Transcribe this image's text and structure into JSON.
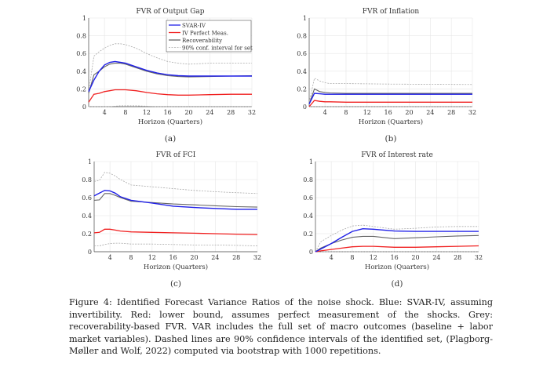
{
  "colors": {
    "svar": "#2020e8",
    "iv": "#f02020",
    "recov": "#666666",
    "ci": "#aaaaaa",
    "grid": "#e6e6e6"
  },
  "legend": [
    "SVAR-IV",
    "IV Perfect Meas.",
    "Recoverability",
    "90% conf. interval for set"
  ],
  "caption": "Figure 4: Identified Forecast Variance Ratios of the noise shock. Blue: SVAR-IV, assuming invertibility. Red: lower bound, assumes perfect measurement of the shocks. Grey: recoverability-based FVR. VAR includes the full set of macro outcomes (baseline + labor market variables). Dashed lines are 90% confidence intervals of the identified set, (Plagborg-Møller and Wolf, 2022) computed via bootstrap with 1000 repetitions.",
  "chart_data": [
    {
      "type": "line",
      "title": "FVR of Output Gap",
      "sublabel": "(a)",
      "xlabel": "Horizon (Quarters)",
      "ylabel": "",
      "xlim": [
        1,
        32
      ],
      "ylim": [
        0,
        1
      ],
      "xticks": [
        4,
        8,
        12,
        16,
        20,
        24,
        28,
        32
      ],
      "yticks": [
        0,
        0.2,
        0.4,
        0.6,
        0.8,
        1
      ],
      "ytick_labels": [
        "0",
        "0.2",
        "0.4",
        "0.6",
        "0.8",
        "1"
      ],
      "grid": true,
      "legend": "top-right",
      "x": [
        1,
        2,
        3,
        4,
        5,
        6,
        7,
        8,
        10,
        12,
        14,
        16,
        18,
        20,
        24,
        28,
        32
      ],
      "series": [
        {
          "name": "90% conf. interval for set",
          "role": "ci",
          "values": [
            0.17,
            0.57,
            0.62,
            0.66,
            0.69,
            0.71,
            0.71,
            0.7,
            0.66,
            0.6,
            0.55,
            0.51,
            0.49,
            0.48,
            0.49,
            0.49,
            0.49
          ]
        },
        {
          "name": "90% conf. interval for set (lower)",
          "role": "ci",
          "values": [
            0,
            0,
            0,
            0,
            0,
            0.005,
            0.01,
            0.01,
            0.01,
            0.005,
            0,
            0,
            0,
            0,
            0,
            0,
            0
          ]
        },
        {
          "name": "Recoverability",
          "role": "recov",
          "values": [
            0.15,
            0.36,
            0.4,
            0.45,
            0.48,
            0.49,
            0.49,
            0.48,
            0.44,
            0.4,
            0.37,
            0.35,
            0.34,
            0.335,
            0.34,
            0.345,
            0.35
          ]
        },
        {
          "name": "IV Perfect Meas.",
          "role": "iv",
          "values": [
            0.05,
            0.14,
            0.15,
            0.17,
            0.18,
            0.19,
            0.19,
            0.19,
            0.18,
            0.16,
            0.145,
            0.135,
            0.13,
            0.13,
            0.135,
            0.14,
            0.14
          ]
        },
        {
          "name": "SVAR-IV",
          "role": "svar",
          "values": [
            0.17,
            0.3,
            0.4,
            0.47,
            0.5,
            0.51,
            0.5,
            0.49,
            0.45,
            0.41,
            0.38,
            0.36,
            0.35,
            0.345,
            0.345,
            0.345,
            0.345
          ]
        }
      ]
    },
    {
      "type": "line",
      "title": "FVR of Inflation",
      "sublabel": "(b)",
      "xlabel": "Horizon (Quarters)",
      "ylabel": "",
      "xlim": [
        1,
        32
      ],
      "ylim": [
        0,
        1
      ],
      "xticks": [
        4,
        8,
        12,
        16,
        20,
        24,
        28,
        32
      ],
      "yticks": [
        0,
        0.2,
        0.4,
        0.6,
        0.8,
        1
      ],
      "ytick_labels": [
        "0",
        "0.2",
        "0.4",
        "0.6",
        "0.8",
        "1"
      ],
      "grid": true,
      "x": [
        1,
        2,
        3,
        4,
        5,
        8,
        16,
        32
      ],
      "series": [
        {
          "name": "90% conf. interval for set",
          "role": "ci",
          "values": [
            0.05,
            0.32,
            0.29,
            0.27,
            0.26,
            0.26,
            0.255,
            0.25
          ]
        },
        {
          "name": "90% conf. interval for set (lower)",
          "role": "ci",
          "values": [
            0,
            0,
            0,
            0,
            0,
            0,
            0,
            0
          ]
        },
        {
          "name": "Recoverability",
          "role": "recov",
          "values": [
            0.03,
            0.2,
            0.17,
            0.16,
            0.155,
            0.15,
            0.15,
            0.15
          ]
        },
        {
          "name": "IV Perfect Meas.",
          "role": "iv",
          "values": [
            0,
            0.07,
            0.06,
            0.055,
            0.055,
            0.05,
            0.05,
            0.05
          ]
        },
        {
          "name": "SVAR-IV",
          "role": "svar",
          "values": [
            0.03,
            0.15,
            0.145,
            0.14,
            0.14,
            0.14,
            0.14,
            0.14
          ]
        }
      ]
    },
    {
      "type": "line",
      "title": "FVR of FCI",
      "sublabel": "(c)",
      "xlabel": "Horizon (Quarters)",
      "ylabel": "",
      "xlim": [
        1,
        32
      ],
      "ylim": [
        0,
        1
      ],
      "xticks": [
        4,
        8,
        12,
        16,
        20,
        24,
        28,
        32
      ],
      "yticks": [
        0,
        0.2,
        0.4,
        0.6,
        0.8,
        1
      ],
      "ytick_labels": [
        "0",
        "0.2",
        "0.4",
        "0.6",
        "0.8",
        "1"
      ],
      "grid": true,
      "x": [
        1,
        2,
        3,
        4,
        5,
        6,
        8,
        12,
        16,
        20,
        24,
        28,
        32
      ],
      "series": [
        {
          "name": "90% conf. interval for set",
          "role": "ci",
          "values": [
            0.78,
            0.79,
            0.88,
            0.87,
            0.84,
            0.8,
            0.74,
            0.72,
            0.7,
            0.68,
            0.665,
            0.655,
            0.645
          ]
        },
        {
          "name": "90% conf. interval for set (lower)",
          "role": "ci",
          "values": [
            0.065,
            0.065,
            0.08,
            0.09,
            0.095,
            0.095,
            0.085,
            0.085,
            0.08,
            0.075,
            0.075,
            0.07,
            0.065
          ]
        },
        {
          "name": "Recoverability",
          "role": "recov",
          "values": [
            0.57,
            0.575,
            0.645,
            0.645,
            0.625,
            0.6,
            0.56,
            0.545,
            0.53,
            0.52,
            0.51,
            0.5,
            0.495
          ]
        },
        {
          "name": "IV Perfect Meas.",
          "role": "iv",
          "values": [
            0.21,
            0.215,
            0.25,
            0.25,
            0.24,
            0.23,
            0.22,
            0.215,
            0.21,
            0.205,
            0.2,
            0.195,
            0.19
          ]
        },
        {
          "name": "SVAR-IV",
          "role": "svar",
          "values": [
            0.62,
            0.65,
            0.68,
            0.675,
            0.65,
            0.61,
            0.57,
            0.54,
            0.505,
            0.49,
            0.48,
            0.47,
            0.47
          ]
        }
      ]
    },
    {
      "type": "line",
      "title": "FVR of Interest rate",
      "sublabel": "(d)",
      "xlabel": "Horizon (Quarters)",
      "ylabel": "",
      "xlim": [
        1,
        32
      ],
      "ylim": [
        0,
        1
      ],
      "xticks": [
        4,
        8,
        12,
        16,
        20,
        24,
        28,
        32
      ],
      "yticks": [
        0,
        0.2,
        0.4,
        0.6,
        0.8,
        1
      ],
      "ytick_labels": [
        "0",
        "0.2",
        "0.4",
        "0.6",
        "0.8",
        "1"
      ],
      "grid": true,
      "x": [
        1,
        2,
        4,
        6,
        8,
        10,
        12,
        16,
        20,
        24,
        28,
        32
      ],
      "series": [
        {
          "name": "90% conf. interval for set",
          "role": "ci",
          "values": [
            0,
            0.11,
            0.18,
            0.24,
            0.285,
            0.295,
            0.28,
            0.25,
            0.26,
            0.275,
            0.28,
            0.28
          ]
        },
        {
          "name": "90% conf. interval for set (lower)",
          "role": "ci",
          "values": [
            0,
            0,
            0,
            0,
            0,
            0,
            0,
            0,
            0,
            0,
            0,
            0
          ]
        },
        {
          "name": "Recoverability",
          "role": "recov",
          "values": [
            0,
            0.04,
            0.09,
            0.13,
            0.16,
            0.17,
            0.17,
            0.145,
            0.155,
            0.165,
            0.175,
            0.18
          ]
        },
        {
          "name": "IV Perfect Meas.",
          "role": "iv",
          "values": [
            0,
            0.01,
            0.025,
            0.04,
            0.055,
            0.06,
            0.06,
            0.05,
            0.05,
            0.055,
            0.06,
            0.065
          ]
        },
        {
          "name": "SVAR-IV",
          "role": "svar",
          "values": [
            0,
            0.03,
            0.09,
            0.16,
            0.225,
            0.255,
            0.25,
            0.23,
            0.225,
            0.225,
            0.225,
            0.225
          ]
        }
      ]
    }
  ]
}
